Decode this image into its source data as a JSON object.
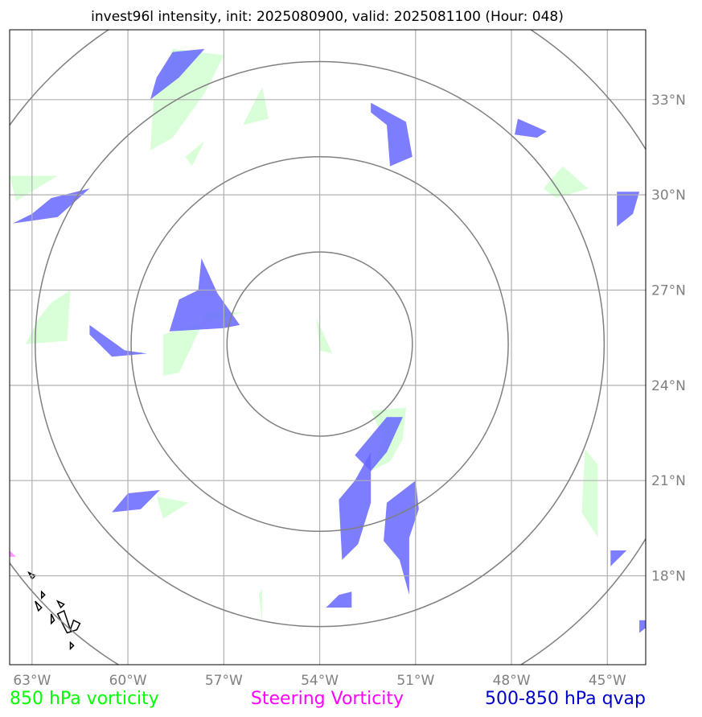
{
  "chart_data": {
    "type": "map",
    "title": "invest96l intensity, init: 2025080900, valid: 2025081100 (Hour: 048)",
    "projection": "lon-lat",
    "xlim": [
      -63.7,
      -43.8
    ],
    "ylim": [
      15.2,
      35.2
    ],
    "xticks": [
      -63,
      -60,
      -57,
      -54,
      -51,
      -48,
      -45
    ],
    "xtick_labels": [
      "63°W",
      "60°W",
      "57°W",
      "54°W",
      "51°W",
      "48°W",
      "45°W"
    ],
    "yticks": [
      18,
      21,
      24,
      27,
      30,
      33
    ],
    "ytick_labels": [
      "18°N",
      "21°N",
      "24°N",
      "27°N",
      "30°N",
      "33°N"
    ],
    "grid": true,
    "center": {
      "lon": -54.0,
      "lat": 25.3
    },
    "range_rings_deg": [
      2.9,
      5.9,
      8.9,
      11.9
    ],
    "legend": [
      {
        "label": "850 hPa vorticity",
        "color": "#00ff00",
        "position": "bottom-left"
      },
      {
        "label": "Steering Vorticity",
        "color": "#ff00ff",
        "position": "bottom-center"
      },
      {
        "label": "500-850 hPa qvap",
        "color": "#0000cc",
        "position": "bottom-right"
      }
    ],
    "colors": {
      "vorticity_fill": "#ccffcc",
      "qvap_fill": "#6666ff",
      "steering_fill": "#ff99ff",
      "ring": "#808080",
      "grid": "#b0b0b0",
      "coast": "#000000"
    },
    "vorticity_850": [
      [
        [
          -58.6,
          34.6
        ],
        [
          -57.0,
          34.4
        ],
        [
          -57.6,
          33.2
        ],
        [
          -58.6,
          31.8
        ],
        [
          -59.3,
          31.4
        ],
        [
          -59.2,
          33.0
        ]
      ],
      [
        [
          -55.8,
          33.4
        ],
        [
          -55.6,
          32.4
        ],
        [
          -56.4,
          32.2
        ]
      ],
      [
        [
          -58.2,
          31.2
        ],
        [
          -57.6,
          31.7
        ],
        [
          -58.0,
          30.9
        ]
      ],
      [
        [
          -63.7,
          30.6
        ],
        [
          -62.2,
          30.6
        ],
        [
          -63.5,
          29.8
        ]
      ],
      [
        [
          -62.4,
          26.6
        ],
        [
          -61.8,
          27.0
        ],
        [
          -61.9,
          25.4
        ],
        [
          -63.2,
          25.3
        ],
        [
          -62.8,
          26.1
        ]
      ],
      [
        [
          -56.4,
          26.3
        ],
        [
          -57.5,
          26.3
        ],
        [
          -58.4,
          24.4
        ],
        [
          -58.9,
          24.3
        ],
        [
          -58.9,
          25.6
        ]
      ],
      [
        [
          -53.6,
          25.0
        ],
        [
          -54.0,
          25.1
        ],
        [
          -54.1,
          26.1
        ]
      ],
      [
        [
          -52.4,
          23.2
        ],
        [
          -51.3,
          23.3
        ],
        [
          -51.4,
          22.3
        ],
        [
          -51.8,
          21.6
        ],
        [
          -52.4,
          21.3
        ],
        [
          -52.0,
          22.3
        ]
      ],
      [
        [
          -46.4,
          30.9
        ],
        [
          -45.6,
          30.2
        ],
        [
          -46.6,
          29.9
        ],
        [
          -47.0,
          30.2
        ]
      ],
      [
        [
          -45.7,
          22.0
        ],
        [
          -45.3,
          21.5
        ],
        [
          -45.3,
          19.2
        ],
        [
          -45.8,
          20.0
        ]
      ],
      [
        [
          -58.1,
          20.3
        ],
        [
          -59.1,
          20.5
        ],
        [
          -58.9,
          19.8
        ]
      ],
      [
        [
          -55.9,
          17.4
        ],
        [
          -55.8,
          16.5
        ],
        [
          -55.8,
          17.6
        ]
      ]
    ],
    "qvap_500_850": [
      [
        [
          -58.6,
          34.5
        ],
        [
          -57.6,
          34.6
        ],
        [
          -58.4,
          33.7
        ],
        [
          -59.3,
          33.0
        ],
        [
          -59.1,
          33.7
        ]
      ],
      [
        [
          -62.4,
          29.9
        ],
        [
          -61.2,
          30.2
        ],
        [
          -62.2,
          29.3
        ],
        [
          -63.6,
          29.1
        ],
        [
          -63.0,
          29.4
        ]
      ],
      [
        [
          -57.7,
          28.0
        ],
        [
          -57.2,
          26.9
        ],
        [
          -56.5,
          25.9
        ],
        [
          -57.0,
          25.8
        ],
        [
          -58.7,
          25.7
        ],
        [
          -58.4,
          26.7
        ],
        [
          -57.8,
          27.0
        ]
      ],
      [
        [
          -61.2,
          25.9
        ],
        [
          -60.1,
          25.1
        ],
        [
          -59.4,
          25.0
        ],
        [
          -60.5,
          24.9
        ],
        [
          -61.2,
          25.6
        ]
      ],
      [
        [
          -52.4,
          32.9
        ],
        [
          -51.3,
          32.3
        ],
        [
          -51.1,
          31.2
        ],
        [
          -51.8,
          30.9
        ],
        [
          -51.9,
          32.2
        ],
        [
          -52.4,
          32.6
        ]
      ],
      [
        [
          -47.8,
          32.4
        ],
        [
          -46.9,
          32.0
        ],
        [
          -47.2,
          31.8
        ],
        [
          -47.9,
          31.9
        ]
      ],
      [
        [
          -44.7,
          30.1
        ],
        [
          -44.0,
          30.1
        ],
        [
          -44.2,
          29.4
        ],
        [
          -44.7,
          29.0
        ]
      ],
      [
        [
          -51.4,
          23.0
        ],
        [
          -51.9,
          23.0
        ],
        [
          -52.9,
          21.8
        ],
        [
          -52.4,
          21.3
        ],
        [
          -51.9,
          21.9
        ]
      ],
      [
        [
          -52.4,
          21.9
        ],
        [
          -52.9,
          21.0
        ],
        [
          -53.4,
          20.4
        ],
        [
          -53.3,
          18.5
        ],
        [
          -52.8,
          19.0
        ],
        [
          -52.4,
          20.3
        ]
      ],
      [
        [
          -51.0,
          21.0
        ],
        [
          -50.9,
          20.1
        ],
        [
          -51.2,
          19.2
        ],
        [
          -51.2,
          17.4
        ],
        [
          -51.5,
          18.5
        ],
        [
          -52.0,
          19.1
        ],
        [
          -51.9,
          20.3
        ]
      ],
      [
        [
          -60.0,
          20.6
        ],
        [
          -59.0,
          20.7
        ],
        [
          -59.6,
          20.1
        ],
        [
          -60.5,
          20.0
        ]
      ],
      [
        [
          -53.4,
          17.4
        ],
        [
          -53.0,
          17.5
        ],
        [
          -53.0,
          17.0
        ],
        [
          -53.8,
          17.0
        ]
      ],
      [
        [
          -44.9,
          18.8
        ],
        [
          -44.4,
          18.8
        ],
        [
          -44.9,
          18.3
        ]
      ],
      [
        [
          -44.0,
          16.6
        ],
        [
          -43.5,
          16.6
        ],
        [
          -44.0,
          16.2
        ]
      ]
    ],
    "steering_vorticity": [
      [
        [
          -63.7,
          18.8
        ],
        [
          -63.5,
          18.6
        ],
        [
          -63.7,
          18.6
        ]
      ]
    ],
    "coastlines": [
      [
        [
          -62.2,
          16.8
        ],
        [
          -62.1,
          16.6
        ],
        [
          -61.9,
          16.2
        ],
        [
          -61.6,
          16.3
        ],
        [
          -61.5,
          16.5
        ],
        [
          -61.7,
          16.6
        ],
        [
          -61.8,
          16.3
        ],
        [
          -62.0,
          16.9
        ]
      ],
      [
        [
          -62.7,
          17.5
        ],
        [
          -62.6,
          17.4
        ],
        [
          -62.7,
          17.3
        ]
      ],
      [
        [
          -62.2,
          17.2
        ],
        [
          -62.0,
          17.1
        ],
        [
          -62.1,
          17.0
        ]
      ],
      [
        [
          -62.9,
          17.2
        ],
        [
          -62.7,
          17.0
        ],
        [
          -62.8,
          16.9
        ]
      ],
      [
        [
          -61.8,
          15.9
        ],
        [
          -61.7,
          15.8
        ],
        [
          -61.8,
          15.7
        ]
      ],
      [
        [
          -63.1,
          18.1
        ],
        [
          -62.9,
          18.0
        ],
        [
          -63.0,
          17.9
        ]
      ],
      [
        [
          -62.4,
          16.8
        ],
        [
          -62.3,
          16.6
        ],
        [
          -62.4,
          16.5
        ]
      ]
    ]
  }
}
